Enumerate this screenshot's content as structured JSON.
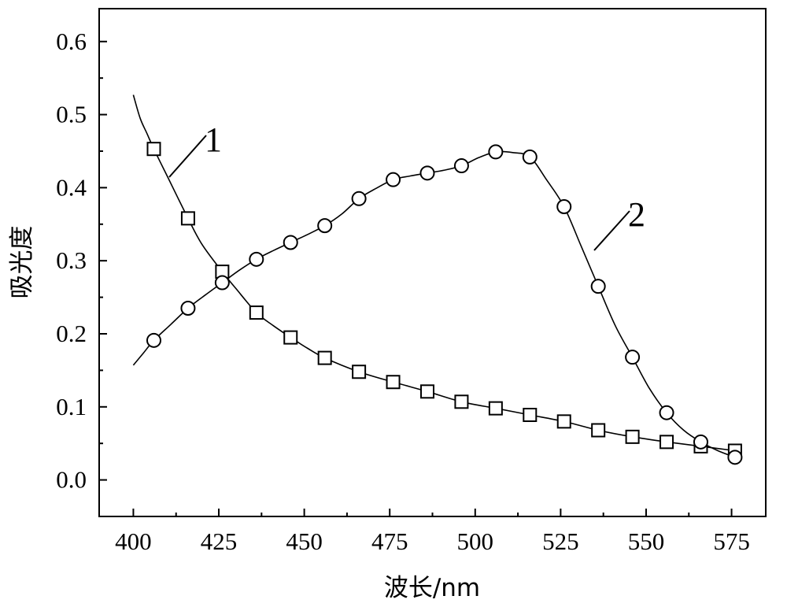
{
  "chart_data": {
    "type": "line",
    "xlabel": "波长/nm",
    "ylabel": "吸光度",
    "xlim": [
      390,
      585
    ],
    "ylim": [
      -0.05,
      0.645
    ],
    "xticks": [
      400,
      425,
      450,
      475,
      500,
      525,
      550,
      575
    ],
    "yticks": [
      0.0,
      0.1,
      0.2,
      0.3,
      0.4,
      0.5,
      0.6
    ],
    "xtick_labels": [
      "400",
      "425",
      "450",
      "475",
      "500",
      "525",
      "550",
      "575"
    ],
    "ytick_labels": [
      "0.0",
      "0.1",
      "0.2",
      "0.3",
      "0.4",
      "0.5",
      "0.6"
    ],
    "grid": false,
    "legend": "none",
    "series": [
      {
        "name": "1",
        "marker": "square",
        "curve": [
          [
            400,
            0.527
          ],
          [
            402,
            0.495
          ],
          [
            404,
            0.474
          ],
          [
            406,
            0.453
          ],
          [
            410,
            0.415
          ],
          [
            416,
            0.358
          ],
          [
            420,
            0.323
          ],
          [
            426,
            0.285
          ],
          [
            430,
            0.262
          ],
          [
            436,
            0.229
          ],
          [
            441,
            0.211
          ],
          [
            446,
            0.195
          ],
          [
            451,
            0.18
          ],
          [
            456,
            0.167
          ],
          [
            466,
            0.148
          ],
          [
            476,
            0.134
          ],
          [
            486,
            0.121
          ],
          [
            496,
            0.107
          ],
          [
            506,
            0.098
          ],
          [
            516,
            0.089
          ],
          [
            526,
            0.08
          ],
          [
            536,
            0.068
          ],
          [
            546,
            0.059
          ],
          [
            556,
            0.052
          ],
          [
            566,
            0.046
          ],
          [
            576,
            0.04
          ]
        ],
        "points": [
          [
            406,
            0.453
          ],
          [
            416,
            0.358
          ],
          [
            426,
            0.285
          ],
          [
            436,
            0.229
          ],
          [
            446,
            0.195
          ],
          [
            456,
            0.167
          ],
          [
            466,
            0.148
          ],
          [
            476,
            0.134
          ],
          [
            486,
            0.121
          ],
          [
            496,
            0.107
          ],
          [
            506,
            0.098
          ],
          [
            516,
            0.089
          ],
          [
            526,
            0.08
          ],
          [
            536,
            0.068
          ],
          [
            546,
            0.059
          ],
          [
            556,
            0.052
          ],
          [
            566,
            0.046
          ],
          [
            576,
            0.04
          ]
        ]
      },
      {
        "name": "2",
        "marker": "circle",
        "curve": [
          [
            400,
            0.157
          ],
          [
            403,
            0.174
          ],
          [
            406,
            0.191
          ],
          [
            411,
            0.213
          ],
          [
            416,
            0.235
          ],
          [
            421,
            0.253
          ],
          [
            426,
            0.27
          ],
          [
            431,
            0.287
          ],
          [
            436,
            0.302
          ],
          [
            441,
            0.314
          ],
          [
            446,
            0.325
          ],
          [
            451,
            0.336
          ],
          [
            456,
            0.348
          ],
          [
            461,
            0.364
          ],
          [
            466,
            0.385
          ],
          [
            471,
            0.399
          ],
          [
            476,
            0.411
          ],
          [
            481,
            0.416
          ],
          [
            486,
            0.42
          ],
          [
            491,
            0.424
          ],
          [
            496,
            0.43
          ],
          [
            501,
            0.441
          ],
          [
            506,
            0.449
          ],
          [
            511,
            0.448
          ],
          [
            516,
            0.442
          ],
          [
            521,
            0.41
          ],
          [
            526,
            0.374
          ],
          [
            531,
            0.32
          ],
          [
            536,
            0.265
          ],
          [
            541,
            0.211
          ],
          [
            546,
            0.168
          ],
          [
            551,
            0.125
          ],
          [
            556,
            0.092
          ],
          [
            561,
            0.068
          ],
          [
            566,
            0.052
          ],
          [
            571,
            0.04
          ],
          [
            576,
            0.031
          ]
        ],
        "points": [
          [
            406,
            0.191
          ],
          [
            416,
            0.235
          ],
          [
            426,
            0.27
          ],
          [
            436,
            0.302
          ],
          [
            446,
            0.325
          ],
          [
            456,
            0.348
          ],
          [
            466,
            0.385
          ],
          [
            476,
            0.411
          ],
          [
            486,
            0.42
          ],
          [
            496,
            0.43
          ],
          [
            506,
            0.449
          ],
          [
            516,
            0.442
          ],
          [
            526,
            0.374
          ],
          [
            536,
            0.265
          ],
          [
            546,
            0.168
          ],
          [
            556,
            0.092
          ],
          [
            566,
            0.052
          ],
          [
            576,
            0.031
          ]
        ]
      }
    ]
  }
}
